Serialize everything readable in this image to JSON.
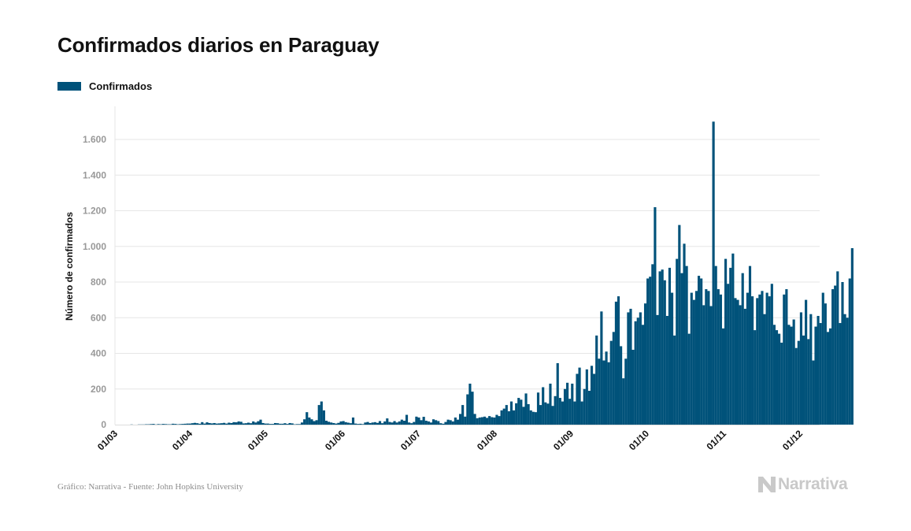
{
  "colors": {
    "bar": "#00527a",
    "grid": "#e6e6e6",
    "tick": "#999999",
    "label": "#111111"
  },
  "chart_data": {
    "type": "bar",
    "title": "Confirmados diarios en Paraguay",
    "legend": {
      "position": "top-left",
      "entries": [
        {
          "name": "Confirmados",
          "color": "#00527a"
        }
      ]
    },
    "ylabel": "Número de confirmados",
    "xlabel": "",
    "ylim": [
      0,
      1800
    ],
    "yticks": [
      {
        "value": 0,
        "label": "0"
      },
      {
        "value": 200,
        "label": "200"
      },
      {
        "value": 400,
        "label": "400"
      },
      {
        "value": 600,
        "label": "600"
      },
      {
        "value": 800,
        "label": "800"
      },
      {
        "value": 1000,
        "label": "1.000"
      },
      {
        "value": 1200,
        "label": "1.200"
      },
      {
        "value": 1400,
        "label": "1.400"
      },
      {
        "value": 1600,
        "label": "1.600"
      }
    ],
    "xticks": [
      "01/03",
      "01/04",
      "01/05",
      "01/06",
      "01/07",
      "01/08",
      "01/09",
      "01/10",
      "01/11",
      "01/12"
    ],
    "grid": true,
    "series": [
      {
        "name": "Confirmados",
        "start_date": "2020-03-01",
        "values": [
          0,
          0,
          0,
          0,
          0,
          0,
          1,
          0,
          0,
          1,
          1,
          1,
          2,
          2,
          3,
          4,
          1,
          3,
          2,
          4,
          3,
          2,
          2,
          5,
          4,
          2,
          3,
          4,
          5,
          6,
          6,
          8,
          10,
          8,
          5,
          14,
          6,
          13,
          9,
          7,
          9,
          6,
          7,
          8,
          10,
          6,
          11,
          9,
          14,
          13,
          18,
          16,
          7,
          8,
          11,
          8,
          18,
          12,
          19,
          28,
          9,
          6,
          6,
          4,
          4,
          9,
          8,
          5,
          5,
          8,
          4,
          9,
          7,
          2,
          3,
          3,
          12,
          30,
          70,
          40,
          30,
          20,
          25,
          110,
          130,
          80,
          22,
          16,
          12,
          9,
          6,
          10,
          18,
          20,
          14,
          11,
          8,
          40,
          6,
          4,
          5,
          3,
          12,
          15,
          9,
          12,
          14,
          10,
          20,
          8,
          18,
          35,
          15,
          12,
          20,
          12,
          18,
          28,
          22,
          55,
          12,
          8,
          15,
          45,
          40,
          25,
          44,
          22,
          18,
          12,
          30,
          25,
          20,
          8,
          5,
          15,
          28,
          25,
          18,
          40,
          28,
          60,
          110,
          45,
          170,
          230,
          185,
          60,
          36,
          40,
          42,
          45,
          38,
          48,
          42,
          40,
          55,
          48,
          80,
          90,
          110,
          75,
          130,
          80,
          120,
          150,
          140,
          100,
          175,
          115,
          80,
          72,
          70,
          180,
          110,
          210,
          125,
          118,
          230,
          105,
          160,
          345,
          150,
          130,
          200,
          235,
          145,
          230,
          130,
          285,
          320,
          130,
          200,
          310,
          190,
          330,
          285,
          500,
          370,
          635,
          360,
          410,
          350,
          470,
          520,
          690,
          720,
          440,
          260,
          370,
          630,
          650,
          420,
          580,
          600,
          630,
          560,
          680,
          820,
          830,
          900,
          1220,
          615,
          860,
          870,
          810,
          610,
          880,
          740,
          500,
          930,
          1120,
          850,
          1015,
          890,
          510,
          740,
          700,
          750,
          835,
          820,
          670,
          760,
          750,
          665,
          1700,
          890,
          760,
          730,
          540,
          930,
          790,
          880,
          960,
          710,
          700,
          670,
          850,
          650,
          740,
          890,
          720,
          530,
          710,
          730,
          750,
          620,
          740,
          720,
          790,
          560,
          530,
          510,
          460,
          730,
          760,
          560,
          550,
          590,
          430,
          470,
          630,
          500,
          700,
          480,
          620,
          360,
          550,
          610,
          570,
          740,
          680,
          520,
          540,
          760,
          780,
          860,
          570,
          800,
          620,
          600,
          820,
          990
        ]
      }
    ]
  },
  "footer": {
    "source": "Gráfico: Narrativa - Fuente: John Hopkins University",
    "brand": "Narrativa"
  }
}
